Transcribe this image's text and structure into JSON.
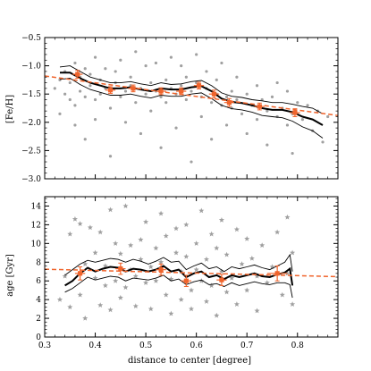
{
  "chart_data": [
    {
      "type": "scatter",
      "title": "",
      "xlabel": "",
      "ylabel": "[Fe/H]",
      "xlim": [
        0.3,
        0.88
      ],
      "ylim": [
        -3.0,
        -0.5
      ],
      "xticks": [
        0.3,
        0.4,
        0.5,
        0.6,
        0.7,
        0.8
      ],
      "xtick_labels": [],
      "yticks": [
        -3.0,
        -2.5,
        -2.0,
        -1.5,
        -1.0,
        -0.5
      ],
      "ytick_labels": [
        "−3.0",
        "−2.5",
        "−2.0",
        "−1.5",
        "−1.0",
        "−0.5"
      ],
      "grid": false,
      "colors": {
        "scatter": "#a0a0a0",
        "bins": "#f0642c",
        "fit": "#f0642c",
        "running": "#000000"
      },
      "scatter_marker": "dot",
      "scatter": [
        [
          0.32,
          -1.4
        ],
        [
          0.33,
          -1.25
        ],
        [
          0.33,
          -1.85
        ],
        [
          0.34,
          -1.1
        ],
        [
          0.34,
          -1.5
        ],
        [
          0.35,
          -1.6
        ],
        [
          0.35,
          -1.3
        ],
        [
          0.36,
          -0.95
        ],
        [
          0.36,
          -1.7
        ],
        [
          0.36,
          -2.05
        ],
        [
          0.37,
          -1.2
        ],
        [
          0.37,
          -1.45
        ],
        [
          0.38,
          -1.05
        ],
        [
          0.38,
          -1.55
        ],
        [
          0.38,
          -2.3
        ],
        [
          0.39,
          -1.35
        ],
        [
          0.39,
          -1.15
        ],
        [
          0.4,
          -1.6
        ],
        [
          0.4,
          -0.85
        ],
        [
          0.4,
          -1.95
        ],
        [
          0.41,
          -1.25
        ],
        [
          0.41,
          -1.5
        ],
        [
          0.42,
          -1.4
        ],
        [
          0.42,
          -1.05
        ],
        [
          0.43,
          -1.75
        ],
        [
          0.43,
          -2.6
        ],
        [
          0.44,
          -1.3
        ],
        [
          0.44,
          -1.1
        ],
        [
          0.45,
          -1.55
        ],
        [
          0.45,
          -0.9
        ],
        [
          0.46,
          -1.45
        ],
        [
          0.46,
          -2.0
        ],
        [
          0.47,
          -1.2
        ],
        [
          0.47,
          -1.35
        ],
        [
          0.48,
          -1.65
        ],
        [
          0.48,
          -0.75
        ],
        [
          0.49,
          -1.4
        ],
        [
          0.49,
          -2.2
        ],
        [
          0.5,
          -1.5
        ],
        [
          0.5,
          -1.0
        ],
        [
          0.51,
          -1.3
        ],
        [
          0.51,
          -1.8
        ],
        [
          0.52,
          -1.45
        ],
        [
          0.52,
          -0.95
        ],
        [
          0.53,
          -1.55
        ],
        [
          0.53,
          -2.45
        ],
        [
          0.54,
          -1.25
        ],
        [
          0.54,
          -1.65
        ],
        [
          0.55,
          -1.4
        ],
        [
          0.55,
          -0.85
        ],
        [
          0.56,
          -1.5
        ],
        [
          0.56,
          -2.1
        ],
        [
          0.57,
          -1.35
        ],
        [
          0.57,
          -1.0
        ],
        [
          0.58,
          -1.6
        ],
        [
          0.58,
          -1.2
        ],
        [
          0.59,
          -1.45
        ],
        [
          0.59,
          -2.7
        ],
        [
          0.6,
          -1.3
        ],
        [
          0.6,
          -0.8
        ],
        [
          0.61,
          -1.55
        ],
        [
          0.61,
          -1.9
        ],
        [
          0.62,
          -1.4
        ],
        [
          0.62,
          -1.1
        ],
        [
          0.63,
          -1.65
        ],
        [
          0.63,
          -2.3
        ],
        [
          0.64,
          -1.5
        ],
        [
          0.64,
          -1.25
        ],
        [
          0.65,
          -1.7
        ],
        [
          0.65,
          -0.95
        ],
        [
          0.66,
          -1.55
        ],
        [
          0.66,
          -2.05
        ],
        [
          0.67,
          -1.45
        ],
        [
          0.67,
          -1.75
        ],
        [
          0.68,
          -1.6
        ],
        [
          0.68,
          -1.2
        ],
        [
          0.69,
          -1.85
        ],
        [
          0.7,
          -1.5
        ],
        [
          0.7,
          -2.2
        ],
        [
          0.71,
          -1.7
        ],
        [
          0.72,
          -1.35
        ],
        [
          0.72,
          -1.95
        ],
        [
          0.73,
          -1.6
        ],
        [
          0.74,
          -1.8
        ],
        [
          0.74,
          -2.4
        ],
        [
          0.75,
          -1.55
        ],
        [
          0.76,
          -1.9
        ],
        [
          0.76,
          -1.3
        ],
        [
          0.77,
          -1.75
        ],
        [
          0.78,
          -2.05
        ],
        [
          0.78,
          -1.45
        ],
        [
          0.79,
          -1.85
        ],
        [
          0.79,
          -2.55
        ],
        [
          0.8,
          -1.65
        ],
        [
          0.81,
          -1.95
        ],
        [
          0.82,
          -1.7
        ],
        [
          0.83,
          -2.15
        ],
        [
          0.84,
          -1.8
        ],
        [
          0.85,
          -2.35
        ],
        [
          0.86,
          -1.9
        ]
      ],
      "running_median": {
        "x": [
          0.33,
          0.35,
          0.37,
          0.39,
          0.41,
          0.43,
          0.45,
          0.47,
          0.49,
          0.51,
          0.53,
          0.55,
          0.57,
          0.59,
          0.61,
          0.63,
          0.65,
          0.67,
          0.69,
          0.71,
          0.73,
          0.75,
          0.77,
          0.79,
          0.81,
          0.83,
          0.85
        ],
        "y": [
          -1.12,
          -1.12,
          -1.22,
          -1.3,
          -1.35,
          -1.4,
          -1.4,
          -1.38,
          -1.42,
          -1.45,
          -1.4,
          -1.42,
          -1.42,
          -1.38,
          -1.36,
          -1.45,
          -1.58,
          -1.64,
          -1.66,
          -1.7,
          -1.75,
          -1.78,
          -1.78,
          -1.82,
          -1.9,
          -1.95,
          -2.05
        ],
        "upper": [
          -1.02,
          -1.0,
          -1.1,
          -1.2,
          -1.25,
          -1.3,
          -1.3,
          -1.28,
          -1.32,
          -1.35,
          -1.3,
          -1.33,
          -1.32,
          -1.28,
          -1.26,
          -1.35,
          -1.48,
          -1.54,
          -1.56,
          -1.6,
          -1.62,
          -1.65,
          -1.65,
          -1.68,
          -1.72,
          -1.75,
          -1.85
        ],
        "lower": [
          -1.24,
          -1.22,
          -1.33,
          -1.42,
          -1.47,
          -1.52,
          -1.52,
          -1.5,
          -1.54,
          -1.57,
          -1.52,
          -1.54,
          -1.54,
          -1.5,
          -1.48,
          -1.58,
          -1.7,
          -1.76,
          -1.78,
          -1.82,
          -1.88,
          -1.9,
          -1.92,
          -1.98,
          -2.08,
          -2.15,
          -2.28
        ]
      },
      "binned": {
        "x": [
          0.365,
          0.43,
          0.475,
          0.53,
          0.57,
          0.605,
          0.635,
          0.665,
          0.725,
          0.795
        ],
        "y": [
          -1.15,
          -1.43,
          -1.4,
          -1.45,
          -1.45,
          -1.35,
          -1.5,
          -1.65,
          -1.72,
          -1.83
        ],
        "yerr": [
          0.07,
          0.06,
          0.06,
          0.06,
          0.06,
          0.06,
          0.07,
          0.07,
          0.06,
          0.07
        ],
        "xerr": [
          0.01,
          0.01,
          0.01,
          0.01,
          0.01,
          0.01,
          0.01,
          0.01,
          0.01,
          0.01
        ]
      },
      "fit": {
        "x": [
          0.3,
          0.88
        ],
        "y": [
          -1.18,
          -1.88
        ],
        "style": "dashed"
      }
    },
    {
      "type": "scatter",
      "title": "",
      "xlabel": "distance to center [degree]",
      "ylabel": "age [Gyr]",
      "xlim": [
        0.3,
        0.88
      ],
      "ylim": [
        0,
        15
      ],
      "xticks": [
        0.3,
        0.4,
        0.5,
        0.6,
        0.7,
        0.8
      ],
      "xtick_labels": [
        "0.3",
        "0.4",
        "0.5",
        "0.6",
        "0.7",
        "0.8"
      ],
      "yticks": [
        0,
        2,
        4,
        6,
        8,
        10,
        12,
        14
      ],
      "ytick_labels": [
        "0",
        "2",
        "4",
        "6",
        "8",
        "10",
        "12",
        "14"
      ],
      "grid": false,
      "colors": {
        "scatter": "#a0a0a0",
        "bins": "#f0642c",
        "fit": "#f0642c",
        "running": "#000000"
      },
      "scatter_marker": "star",
      "scatter": [
        [
          0.33,
          4.0
        ],
        [
          0.34,
          6.5
        ],
        [
          0.35,
          11.0
        ],
        [
          0.35,
          3.2
        ],
        [
          0.36,
          12.6
        ],
        [
          0.37,
          12.1
        ],
        [
          0.37,
          4.5
        ],
        [
          0.38,
          7.8
        ],
        [
          0.38,
          2.0
        ],
        [
          0.39,
          11.7
        ],
        [
          0.4,
          6.3
        ],
        [
          0.4,
          9.0
        ],
        [
          0.41,
          3.4
        ],
        [
          0.41,
          11.2
        ],
        [
          0.42,
          5.5
        ],
        [
          0.42,
          7.6
        ],
        [
          0.43,
          13.6
        ],
        [
          0.43,
          2.9
        ],
        [
          0.44,
          10.0
        ],
        [
          0.44,
          6.0
        ],
        [
          0.45,
          8.9
        ],
        [
          0.45,
          4.2
        ],
        [
          0.46,
          14.0
        ],
        [
          0.46,
          5.3
        ],
        [
          0.47,
          7.2
        ],
        [
          0.47,
          9.8
        ],
        [
          0.48,
          3.3
        ],
        [
          0.48,
          6.5
        ],
        [
          0.49,
          10.4
        ],
        [
          0.49,
          8.3
        ],
        [
          0.5,
          5.8
        ],
        [
          0.5,
          12.3
        ],
        [
          0.51,
          7.5
        ],
        [
          0.51,
          3.0
        ],
        [
          0.52,
          9.5
        ],
        [
          0.52,
          6.0
        ],
        [
          0.53,
          13.2
        ],
        [
          0.53,
          8.0
        ],
        [
          0.54,
          4.5
        ],
        [
          0.54,
          10.8
        ],
        [
          0.55,
          6.2
        ],
        [
          0.55,
          2.5
        ],
        [
          0.56,
          9.0
        ],
        [
          0.56,
          11.6
        ],
        [
          0.57,
          7.0
        ],
        [
          0.57,
          4.0
        ],
        [
          0.58,
          12.0
        ],
        [
          0.58,
          8.6
        ],
        [
          0.59,
          5.0
        ],
        [
          0.59,
          3.0
        ],
        [
          0.6,
          10.0
        ],
        [
          0.6,
          7.2
        ],
        [
          0.61,
          13.5
        ],
        [
          0.61,
          6.0
        ],
        [
          0.62,
          8.3
        ],
        [
          0.62,
          3.8
        ],
        [
          0.63,
          11.0
        ],
        [
          0.63,
          5.5
        ],
        [
          0.64,
          9.5
        ],
        [
          0.64,
          2.3
        ],
        [
          0.65,
          7.0
        ],
        [
          0.65,
          12.5
        ],
        [
          0.66,
          4.8
        ],
        [
          0.66,
          8.8
        ],
        [
          0.67,
          6.3
        ],
        [
          0.68,
          11.5
        ],
        [
          0.68,
          3.5
        ],
        [
          0.69,
          7.8
        ],
        [
          0.7,
          10.5
        ],
        [
          0.7,
          5.0
        ],
        [
          0.71,
          8.4
        ],
        [
          0.72,
          6.5
        ],
        [
          0.72,
          2.8
        ],
        [
          0.73,
          9.8
        ],
        [
          0.74,
          5.8
        ],
        [
          0.75,
          7.5
        ],
        [
          0.76,
          11.2
        ],
        [
          0.77,
          4.5
        ],
        [
          0.78,
          12.8
        ],
        [
          0.78,
          6.8
        ],
        [
          0.79,
          3.5
        ],
        [
          0.79,
          9.0
        ]
      ],
      "running_median": {
        "x": [
          0.34,
          0.355,
          0.37,
          0.385,
          0.4,
          0.415,
          0.43,
          0.445,
          0.46,
          0.475,
          0.49,
          0.505,
          0.52,
          0.535,
          0.55,
          0.565,
          0.58,
          0.595,
          0.61,
          0.625,
          0.64,
          0.655,
          0.67,
          0.685,
          0.7,
          0.715,
          0.73,
          0.745,
          0.76,
          0.775,
          0.785,
          0.79
        ],
        "y": [
          5.5,
          6.0,
          6.8,
          7.4,
          7.0,
          7.3,
          7.5,
          7.4,
          7.0,
          7.3,
          7.2,
          7.0,
          7.2,
          7.6,
          7.0,
          7.2,
          6.4,
          6.8,
          7.0,
          6.4,
          6.6,
          6.2,
          6.6,
          6.4,
          6.6,
          6.8,
          6.5,
          6.4,
          6.7,
          6.9,
          7.3,
          5.5
        ],
        "upper": [
          6.6,
          7.2,
          7.8,
          8.2,
          8.0,
          8.2,
          8.4,
          8.3,
          8.0,
          8.3,
          8.1,
          7.8,
          8.1,
          8.5,
          8.0,
          8.1,
          7.2,
          7.6,
          7.9,
          7.3,
          7.5,
          7.0,
          7.5,
          7.3,
          7.5,
          7.7,
          7.4,
          7.2,
          7.6,
          8.0,
          8.8,
          7.0
        ],
        "lower": [
          4.8,
          5.2,
          5.8,
          6.4,
          6.1,
          6.3,
          6.5,
          6.4,
          6.0,
          6.3,
          6.2,
          6.1,
          6.3,
          6.6,
          6.0,
          6.2,
          5.6,
          5.9,
          6.1,
          5.6,
          5.7,
          5.4,
          5.8,
          5.5,
          5.7,
          5.9,
          5.7,
          5.6,
          5.8,
          5.8,
          5.6,
          4.2
        ]
      },
      "binned": {
        "x": [
          0.37,
          0.45,
          0.53,
          0.58,
          0.65,
          0.76
        ],
        "y": [
          6.8,
          7.3,
          7.2,
          6.0,
          6.1,
          6.8
        ],
        "yerr": [
          0.7,
          0.6,
          0.6,
          0.6,
          0.6,
          0.8
        ],
        "xerr": [
          0.01,
          0.01,
          0.01,
          0.01,
          0.01,
          0.02
        ]
      },
      "fit": {
        "x": [
          0.3,
          0.88
        ],
        "y": [
          7.25,
          6.45
        ],
        "style": "dashed"
      }
    }
  ]
}
